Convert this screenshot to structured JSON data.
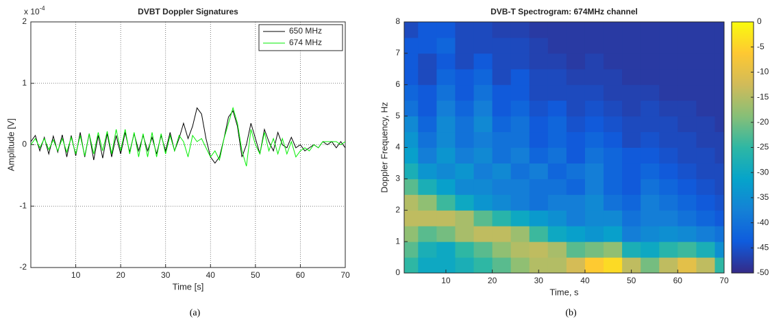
{
  "chart_data": [
    {
      "type": "line",
      "title": "DVBT Doppler Signatures",
      "xlabel": "Time [s]",
      "ylabel": "Amplitude [V]",
      "y_multiplier": {
        "base": "x 10",
        "exponent": "-4"
      },
      "caption": "(a)",
      "xlim": [
        0,
        70
      ],
      "xticks": [
        10,
        20,
        30,
        40,
        50,
        60,
        70
      ],
      "ylim": [
        -2,
        2
      ],
      "yticks": [
        -2,
        -1,
        0,
        1,
        2
      ],
      "grid": true,
      "legend": "northeast",
      "x": [
        0,
        1,
        2,
        3,
        4,
        5,
        6,
        7,
        8,
        9,
        10,
        11,
        12,
        13,
        14,
        15,
        16,
        17,
        18,
        19,
        20,
        21,
        22,
        23,
        24,
        25,
        26,
        27,
        28,
        29,
        30,
        31,
        32,
        33,
        34,
        35,
        36,
        37,
        38,
        39,
        40,
        41,
        42,
        43,
        44,
        45,
        46,
        47,
        48,
        49,
        50,
        51,
        52,
        53,
        54,
        55,
        56,
        57,
        58,
        59,
        60,
        61,
        62,
        63,
        64,
        65,
        66,
        67,
        68,
        69,
        70
      ],
      "series": [
        {
          "name": "650 MHz",
          "color": "#000000",
          "values": [
            0.05,
            0.15,
            -0.1,
            0.12,
            -0.15,
            0.14,
            -0.12,
            0.16,
            -0.2,
            0.15,
            -0.18,
            0.2,
            -0.2,
            0.18,
            -0.25,
            0.15,
            -0.22,
            0.18,
            -0.2,
            0.15,
            -0.15,
            0.2,
            -0.12,
            0.18,
            -0.1,
            0.15,
            -0.1,
            0.12,
            -0.15,
            0.15,
            -0.1,
            0.2,
            -0.1,
            0.1,
            0.35,
            0.1,
            0.3,
            0.6,
            0.5,
            0.1,
            -0.2,
            -0.3,
            -0.2,
            0.1,
            0.45,
            0.55,
            0.3,
            -0.2,
            0.0,
            0.35,
            0.1,
            -0.15,
            0.25,
            0.05,
            -0.1,
            0.2,
            0.0,
            -0.05,
            0.12,
            -0.05,
            0.0,
            -0.1,
            -0.05,
            0.0,
            -0.05,
            0.05,
            0.0,
            0.05,
            -0.05,
            0.05,
            -0.05
          ]
        },
        {
          "name": "674 MHz",
          "color": "#00ee00",
          "values": [
            0.0,
            0.1,
            -0.05,
            0.1,
            -0.08,
            0.08,
            -0.1,
            0.1,
            -0.12,
            0.12,
            -0.15,
            0.15,
            -0.18,
            0.18,
            -0.15,
            0.2,
            -0.1,
            0.22,
            -0.15,
            0.25,
            -0.1,
            0.25,
            -0.15,
            0.2,
            -0.2,
            0.18,
            -0.2,
            0.2,
            -0.2,
            0.18,
            -0.15,
            0.15,
            -0.1,
            0.15,
            0.05,
            -0.2,
            0.15,
            0.05,
            0.1,
            -0.05,
            -0.2,
            -0.1,
            -0.25,
            0.1,
            0.35,
            0.6,
            0.35,
            -0.1,
            -0.35,
            0.25,
            0.0,
            -0.15,
            0.2,
            -0.1,
            0.1,
            -0.15,
            0.1,
            -0.15,
            0.05,
            -0.2,
            -0.1,
            -0.05,
            -0.1,
            0.0,
            -0.05,
            0.05,
            0.05,
            0.05,
            0.05,
            0.0,
            0.05
          ]
        }
      ]
    },
    {
      "type": "heatmap",
      "title": "DVB-T Spectrogram: 674MHz channel",
      "xlabel": "Time, s",
      "ylabel": "Doppler Frequency, Hz",
      "caption": "(b)",
      "xlim": [
        1,
        70
      ],
      "xticks": [
        10,
        20,
        30,
        40,
        50,
        60,
        70
      ],
      "ylim": [
        0,
        8
      ],
      "yticks": [
        0,
        1,
        2,
        3,
        4,
        5,
        6,
        7,
        8
      ],
      "clim": [
        -50,
        0
      ],
      "cticks": [
        0,
        -5,
        -10,
        -15,
        -20,
        -25,
        -30,
        -35,
        -40,
        -45,
        -50
      ],
      "colormap": [
        "#352a87",
        "#0f5cdd",
        "#1481d6",
        "#06a4ca",
        "#2eb7a4",
        "#87bf77",
        "#d1bb59",
        "#fec832",
        "#f9fb0e"
      ],
      "x": [
        2,
        6,
        10,
        14,
        18,
        22,
        26,
        30,
        34,
        38,
        42,
        46,
        50,
        54,
        58,
        62,
        66,
        70
      ],
      "y": [
        0.25,
        0.75,
        1.25,
        1.75,
        2.25,
        2.75,
        3.25,
        3.75,
        4.25,
        4.75,
        5.25,
        5.75,
        6.25,
        6.75,
        7.25,
        7.75
      ],
      "z": [
        [
          -25,
          -30,
          -30,
          -28,
          -25,
          -22,
          -18,
          -15,
          -15,
          -12,
          -6,
          -4,
          -14,
          -20,
          -14,
          -10,
          -14,
          -25
        ],
        [
          -22,
          -28,
          -30,
          -25,
          -22,
          -18,
          -15,
          -14,
          -16,
          -22,
          -20,
          -18,
          -28,
          -30,
          -26,
          -24,
          -28,
          -35
        ],
        [
          -18,
          -22,
          -20,
          -16,
          -14,
          -14,
          -17,
          -24,
          -30,
          -32,
          -34,
          -32,
          -38,
          -36,
          -35,
          -36,
          -38,
          -40
        ],
        [
          -14,
          -14,
          -14,
          -16,
          -22,
          -26,
          -30,
          -33,
          -35,
          -38,
          -36,
          -36,
          -40,
          -38,
          -38,
          -40,
          -42,
          -44
        ],
        [
          -15,
          -18,
          -24,
          -30,
          -34,
          -36,
          -38,
          -40,
          -38,
          -38,
          -36,
          -40,
          -42,
          -38,
          -40,
          -42,
          -44,
          -45
        ],
        [
          -22,
          -28,
          -32,
          -36,
          -36,
          -38,
          -38,
          -40,
          -40,
          -42,
          -38,
          -42,
          -44,
          -40,
          -42,
          -44,
          -45,
          -46
        ],
        [
          -28,
          -34,
          -36,
          -34,
          -38,
          -36,
          -40,
          -38,
          -42,
          -40,
          -38,
          -42,
          -44,
          -42,
          -44,
          -45,
          -46,
          -46
        ],
        [
          -32,
          -38,
          -34,
          -38,
          -36,
          -40,
          -38,
          -42,
          -40,
          -44,
          -40,
          -42,
          -44,
          -44,
          -45,
          -46,
          -46,
          -47
        ],
        [
          -34,
          -40,
          -36,
          -40,
          -38,
          -40,
          -40,
          -44,
          -42,
          -44,
          -42,
          -44,
          -46,
          -45,
          -46,
          -46,
          -47,
          -47
        ],
        [
          -36,
          -42,
          -36,
          -40,
          -36,
          -42,
          -40,
          -44,
          -42,
          -45,
          -44,
          -45,
          -46,
          -46,
          -46,
          -47,
          -47,
          -48
        ],
        [
          -40,
          -44,
          -38,
          -42,
          -38,
          -44,
          -42,
          -45,
          -44,
          -46,
          -45,
          -46,
          -47,
          -46,
          -47,
          -47,
          -48,
          -48
        ],
        [
          -42,
          -44,
          -40,
          -44,
          -40,
          -44,
          -44,
          -46,
          -46,
          -46,
          -46,
          -47,
          -47,
          -47,
          -48,
          -48,
          -48,
          -48
        ],
        [
          -44,
          -46,
          -42,
          -44,
          -42,
          -46,
          -44,
          -46,
          -46,
          -47,
          -47,
          -47,
          -48,
          -48,
          -48,
          -48,
          -48,
          -48
        ],
        [
          -44,
          -46,
          -44,
          -46,
          -44,
          -46,
          -46,
          -47,
          -47,
          -48,
          -47,
          -48,
          -48,
          -48,
          -48,
          -48,
          -48,
          -48
        ],
        [
          -44,
          -44,
          -42,
          -46,
          -46,
          -46,
          -46,
          -47,
          -48,
          -48,
          -48,
          -48,
          -48,
          -48,
          -48,
          -48,
          -48,
          -48
        ],
        [
          -46,
          -44,
          -44,
          -46,
          -46,
          -47,
          -47,
          -48,
          -48,
          -48,
          -48,
          -48,
          -48,
          -48,
          -48,
          -48,
          -48,
          -48
        ]
      ]
    }
  ]
}
